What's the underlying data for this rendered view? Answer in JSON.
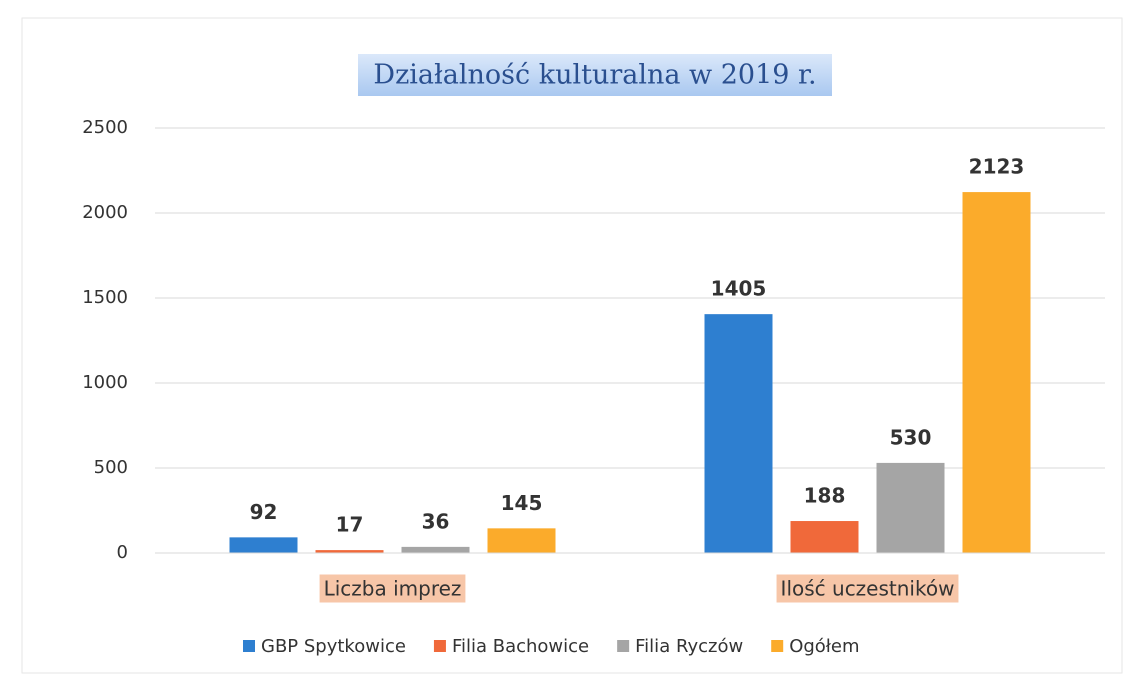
{
  "chart_data": {
    "type": "bar",
    "title": "Działalność kulturalna w 2019 r.",
    "categories": [
      "Liczba imprez",
      "Ilość uczestników"
    ],
    "series": [
      {
        "name": "GBP Spytkowice",
        "color": "#2e7fd0",
        "values": [
          92,
          1405
        ]
      },
      {
        "name": "Filia Bachowice",
        "color": "#f0693a",
        "values": [
          17,
          188
        ]
      },
      {
        "name": "Filia Ryczów",
        "color": "#a5a5a5",
        "values": [
          36,
          530
        ]
      },
      {
        "name": "Ogółem",
        "color": "#fbab2b",
        "values": [
          145,
          2123
        ]
      }
    ],
    "ylim": [
      0,
      2500
    ],
    "yticks": [
      0,
      500,
      1000,
      1500,
      2000,
      2500
    ],
    "grid": true,
    "legend": "bottom"
  }
}
